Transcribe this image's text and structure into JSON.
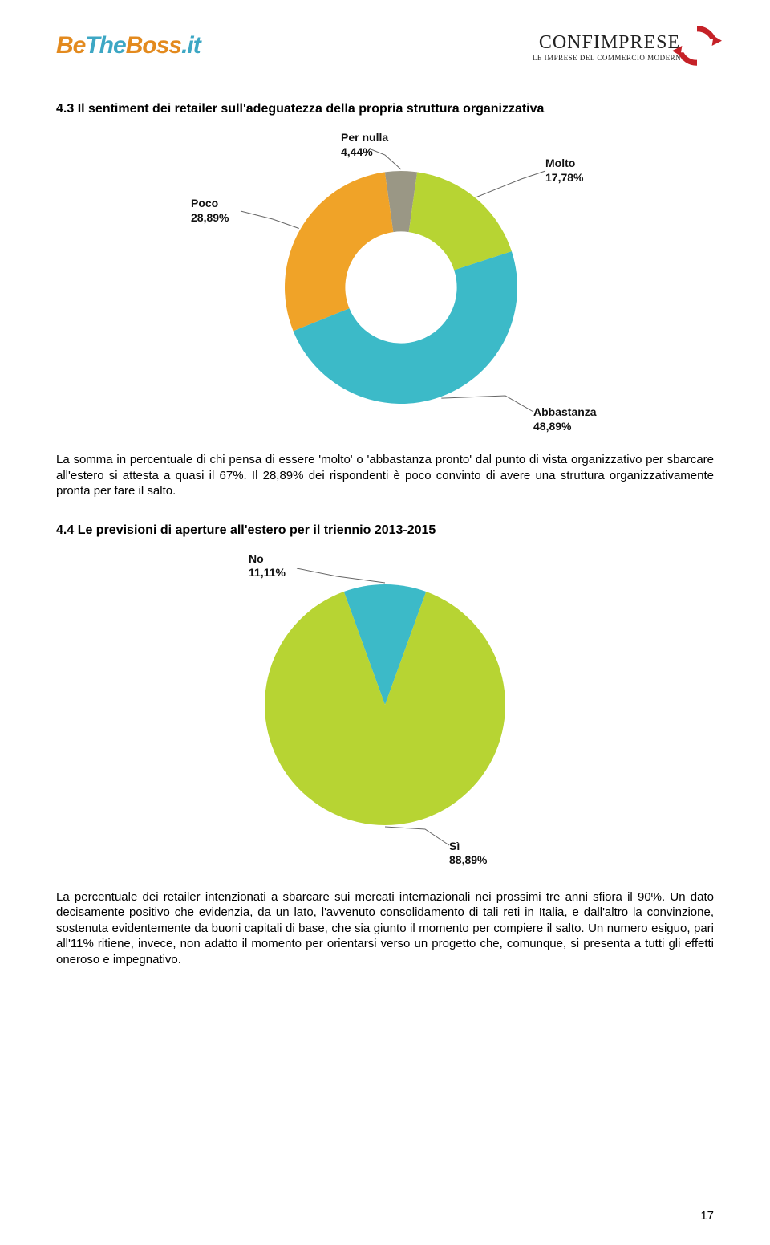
{
  "logo_left": {
    "be": "Be",
    "the": "The",
    "boss": "Boss",
    "dot": ".",
    "it": "it"
  },
  "logo_right": {
    "title": "CONFIMPRESE",
    "subtitle": "LE IMPRESE DEL COMMERCIO MODERNO"
  },
  "section1": {
    "heading": "4.3 Il sentiment dei retailer sull'adeguatezza della propria struttura organizzativa",
    "chart": {
      "type": "donut",
      "inner_ratio": 0.48,
      "radius": 145,
      "slices": [
        {
          "key": "per_nulla",
          "label_line1": "Per nulla",
          "label_line2": "4,44%",
          "value": 4.44,
          "color": "#9a9785"
        },
        {
          "key": "molto",
          "label_line1": "Molto",
          "label_line2": "17,78%",
          "value": 17.78,
          "color": "#b7d433"
        },
        {
          "key": "abbastanza",
          "label_line1": "Abbastanza",
          "label_line2": "48,89%",
          "value": 48.89,
          "color": "#3cbac8"
        },
        {
          "key": "poco",
          "label_line1": "Poco",
          "label_line2": "28,89%",
          "value": 28.89,
          "color": "#f0a328"
        }
      ],
      "label_font_size": 14,
      "leader_color": "#666666",
      "background": "#ffffff"
    },
    "body": "La somma in percentuale di chi pensa di essere 'molto' o 'abbastanza pronto' dal punto di vista organizzativo per sbarcare all'estero si attesta a quasi il 67%. Il 28,89% dei rispondenti è poco convinto di avere una struttura organizzativamente pronta per fare il salto."
  },
  "section2": {
    "heading": "4.4 Le previsioni di aperture all'estero per il triennio 2013-2015",
    "chart": {
      "type": "pie",
      "radius": 150,
      "slices": [
        {
          "key": "no",
          "label_line1": "No",
          "label_line2": "11,11%",
          "value": 11.11,
          "color": "#3cbac8"
        },
        {
          "key": "si",
          "label_line1": "Sì",
          "label_line2": "88,89%",
          "value": 88.89,
          "color": "#b7d433"
        }
      ],
      "label_font_size": 14,
      "leader_color": "#666666",
      "background": "#ffffff"
    },
    "body": "La percentuale dei retailer intenzionati a sbarcare sui mercati internazionali nei prossimi tre anni sfiora il 90%. Un dato decisamente positivo che evidenzia, da un lato, l'avvenuto consolidamento di tali reti in Italia, e dall'altro la convinzione, sostenuta evidentemente da buoni capitali di base, che sia giunto il momento per compiere il salto. Un numero esiguo, pari all'11% ritiene, invece, non adatto il momento per orientarsi verso un progetto che, comunque, si presenta a tutti gli effetti oneroso e impegnativo."
  },
  "page_number": "17"
}
